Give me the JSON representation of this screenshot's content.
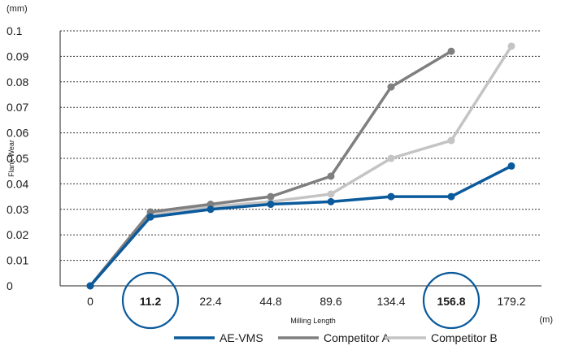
{
  "chart_data": {
    "type": "line",
    "y_unit": "(mm)",
    "x_unit": "(m)",
    "ylabel": "Flank Wear",
    "xlabel": "Milling Length",
    "categories": [
      "0",
      "11.2",
      "22.4",
      "44.8",
      "89.6",
      "134.4",
      "156.8",
      "179.2"
    ],
    "highlighted_categories": [
      "11.2",
      "156.8"
    ],
    "y_ticks": [
      "0",
      "0.01",
      "0.02",
      "0.03",
      "0.04",
      "0.05",
      "0.06",
      "0.07",
      "0.08",
      "0.09",
      "0.1"
    ],
    "ylim": [
      0,
      0.1
    ],
    "grid": true,
    "grid_style": "dotted horizontal",
    "legend_placement": "bottom",
    "series": [
      {
        "name": "AE-VMS",
        "color": "#0a5a9c",
        "values": [
          0,
          0.027,
          0.03,
          0.032,
          0.033,
          0.035,
          0.035,
          0.047
        ]
      },
      {
        "name": "Competitor A",
        "color": "#7f7f7f",
        "values": [
          0,
          0.029,
          0.032,
          0.035,
          0.043,
          0.078,
          0.092,
          null
        ]
      },
      {
        "name": "Competitor B",
        "color": "#c4c4c4",
        "values": [
          0,
          0.028,
          0.031,
          0.033,
          0.036,
          0.05,
          0.057,
          0.094
        ]
      }
    ],
    "highlight_color": "#0a5a9c"
  }
}
